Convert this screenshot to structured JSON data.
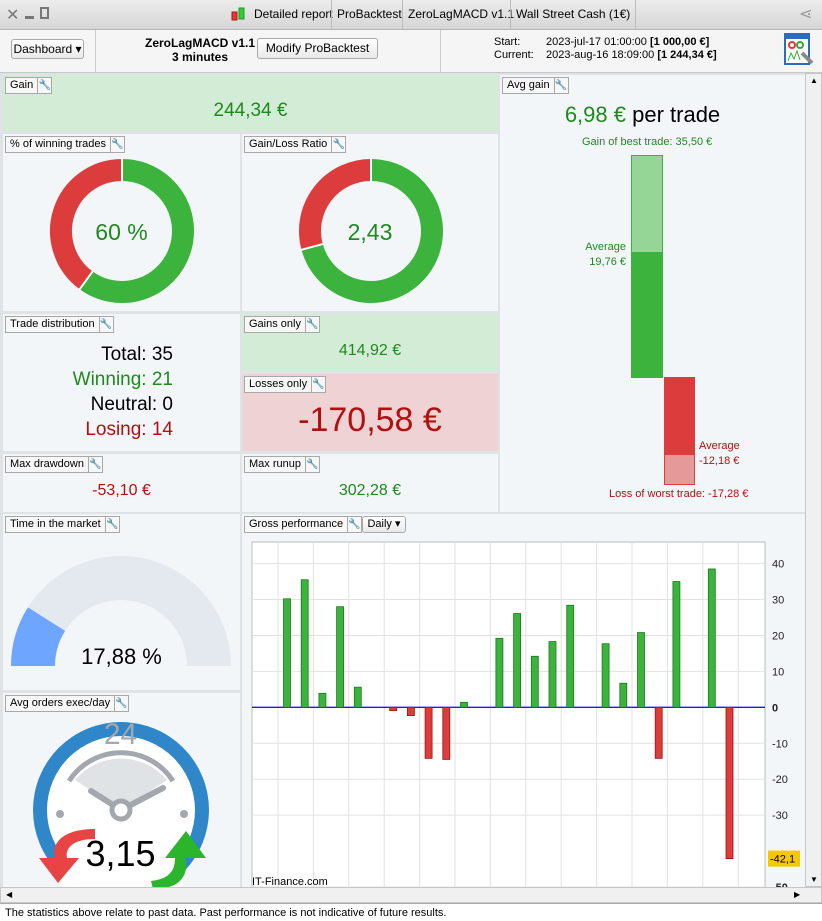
{
  "titlebar": {
    "tabs": [
      "Detailed report",
      "ProBacktest",
      "ZeroLagMACD v1.1",
      "Wall Street Cash (1€)"
    ]
  },
  "header": {
    "dashboard": "Dashboard",
    "strategy": "ZeroLagMACD v1.1",
    "timeframe": "3 minutes",
    "modify": "Modify ProBacktest",
    "start_label": "Start:",
    "start_date": "2023-jul-17 01:00:00",
    "start_value": "[1 000,00 €]",
    "current_label": "Current:",
    "current_date": "2023-aug-16 18:09:00",
    "current_value": "[1 244,34 €]"
  },
  "gain": {
    "label": "Gain",
    "value": "244,34 €"
  },
  "winning": {
    "label": "% of winning trades",
    "value": "60 %",
    "fraction": 0.6
  },
  "ratio": {
    "label": "Gain/Loss Ratio",
    "value": "2,43",
    "fraction": 0.708
  },
  "avg_gain": {
    "label": "Avg gain",
    "value": "6,98 €",
    "suffix": "per trade",
    "best": "Gain of best trade: 35,50 €",
    "avg_win_label": "Average",
    "avg_win": "19,76 €",
    "avg_loss_label": "Average",
    "avg_loss": "-12,18 €",
    "worst": "Loss of worst trade: -17,28 €",
    "best_num": 35.5,
    "avg_win_num": 19.76,
    "avg_loss_num": -12.18,
    "worst_num": -17.28
  },
  "distribution": {
    "label": "Trade distribution",
    "total": "Total: 35",
    "winning": "Winning: 21",
    "neutral": "Neutral: 0",
    "losing": "Losing: 14"
  },
  "gains_only": {
    "label": "Gains only",
    "value": "414,92 €"
  },
  "losses_only": {
    "label": "Losses only",
    "value": "-170,58 €"
  },
  "max_drawdown": {
    "label": "Max drawdown",
    "value": "-53,10 €"
  },
  "max_runup": {
    "label": "Max runup",
    "value": "302,28 €"
  },
  "time_market": {
    "label": "Time in the market",
    "value": "17,88 %",
    "fraction": 0.1788
  },
  "avg_orders": {
    "label": "Avg orders exec/day",
    "value": "3,15",
    "clock": "24"
  },
  "gross": {
    "label": "Gross performance",
    "period": "Daily",
    "watermark": "IT-Finance.com"
  },
  "chart_data": {
    "type": "bar",
    "title": "Gross performance",
    "ylim": [
      -50,
      46
    ],
    "yticks": [
      40,
      30,
      20,
      10,
      0,
      -10,
      -20,
      -30,
      -50
    ],
    "last_value_label": "-42,1",
    "values": [
      30.2,
      35.5,
      3.9,
      28,
      5.6,
      0,
      -0.9,
      -2.3,
      -14.2,
      -14.5,
      1.4,
      0,
      19.2,
      26.1,
      14.2,
      18.3,
      28.4,
      0,
      17.7,
      6.7,
      20.8,
      -14.2,
      35,
      0,
      38.5,
      -42.1
    ],
    "colors": {
      "up": "#3cb33c",
      "down": "#dc3c3c",
      "zero": "#1a1aff"
    }
  },
  "footer": "The statistics above relate to past data. Past performance is not indicative of future results."
}
